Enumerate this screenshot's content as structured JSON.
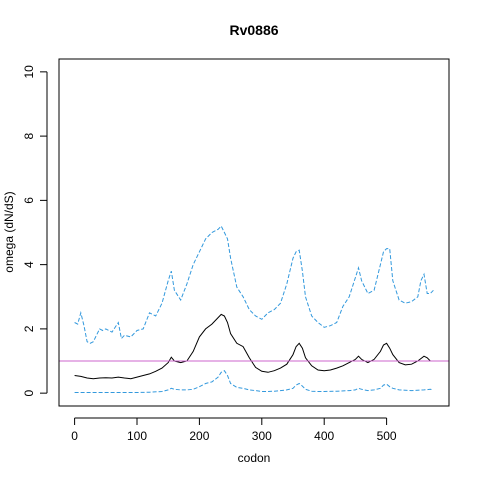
{
  "chart_data": {
    "type": "line",
    "title": "Rv0886",
    "xlabel": "codon",
    "ylabel": "omega (dN/dS)",
    "xlim": [
      -25,
      600
    ],
    "ylim": [
      -0.4,
      10.4
    ],
    "xticks": [
      0,
      100,
      200,
      300,
      400,
      500
    ],
    "yticks": [
      0,
      2,
      4,
      6,
      8,
      10
    ],
    "reference_line": {
      "y": 1,
      "color": "#CC66CC"
    },
    "grid": false,
    "series": [
      {
        "role": "estimate",
        "color": "#000000",
        "style": "solid",
        "x": [
          0,
          10,
          20,
          30,
          40,
          50,
          60,
          70,
          80,
          90,
          100,
          110,
          120,
          130,
          140,
          150,
          155,
          160,
          170,
          180,
          190,
          200,
          210,
          220,
          230,
          235,
          240,
          245,
          250,
          260,
          270,
          280,
          290,
          300,
          310,
          320,
          330,
          340,
          350,
          355,
          360,
          365,
          370,
          380,
          390,
          400,
          410,
          420,
          430,
          440,
          450,
          455,
          460,
          470,
          480,
          490,
          495,
          500,
          505,
          510,
          520,
          530,
          540,
          550,
          560,
          565,
          570,
          575
        ],
        "y": [
          0.55,
          0.52,
          0.47,
          0.45,
          0.47,
          0.48,
          0.47,
          0.5,
          0.47,
          0.45,
          0.5,
          0.55,
          0.6,
          0.68,
          0.78,
          0.95,
          1.12,
          1.0,
          0.95,
          1.0,
          1.3,
          1.75,
          2.0,
          2.15,
          2.35,
          2.45,
          2.4,
          2.2,
          1.85,
          1.55,
          1.45,
          1.1,
          0.8,
          0.68,
          0.65,
          0.7,
          0.78,
          0.9,
          1.2,
          1.45,
          1.55,
          1.4,
          1.1,
          0.85,
          0.72,
          0.7,
          0.72,
          0.78,
          0.85,
          0.95,
          1.05,
          1.15,
          1.05,
          0.95,
          1.05,
          1.3,
          1.5,
          1.55,
          1.4,
          1.2,
          0.95,
          0.88,
          0.9,
          1.0,
          1.15,
          1.1,
          1.0,
          1.0
        ]
      },
      {
        "role": "upper-interval",
        "color": "#3399DD",
        "style": "dashed",
        "x": [
          0,
          5,
          10,
          15,
          20,
          25,
          30,
          40,
          45,
          50,
          60,
          70,
          75,
          80,
          90,
          100,
          110,
          120,
          130,
          140,
          150,
          155,
          160,
          170,
          180,
          190,
          200,
          210,
          220,
          230,
          235,
          240,
          245,
          250,
          260,
          270,
          280,
          290,
          300,
          310,
          320,
          330,
          340,
          350,
          355,
          360,
          365,
          370,
          380,
          390,
          400,
          410,
          420,
          430,
          440,
          450,
          455,
          460,
          470,
          480,
          490,
          495,
          500,
          505,
          510,
          520,
          530,
          540,
          550,
          555,
          560,
          565,
          570,
          575
        ],
        "y": [
          2.2,
          2.15,
          2.5,
          2.1,
          1.6,
          1.55,
          1.6,
          2.0,
          1.95,
          2.0,
          1.9,
          2.2,
          1.7,
          1.8,
          1.75,
          1.95,
          2.0,
          2.5,
          2.4,
          2.8,
          3.5,
          3.8,
          3.2,
          2.9,
          3.4,
          4.0,
          4.4,
          4.8,
          5.0,
          5.1,
          5.2,
          5.0,
          4.8,
          4.2,
          3.3,
          3.0,
          2.6,
          2.4,
          2.3,
          2.5,
          2.6,
          2.8,
          3.4,
          4.2,
          4.4,
          4.45,
          3.8,
          3.0,
          2.4,
          2.2,
          2.05,
          2.1,
          2.2,
          2.7,
          3.0,
          3.6,
          3.9,
          3.5,
          3.1,
          3.2,
          4.0,
          4.4,
          4.5,
          4.5,
          3.5,
          2.9,
          2.8,
          2.85,
          3.0,
          3.5,
          3.7,
          3.1,
          3.1,
          3.2
        ]
      },
      {
        "role": "lower-interval",
        "color": "#3399DD",
        "style": "dashed",
        "x": [
          0,
          20,
          40,
          60,
          80,
          100,
          120,
          140,
          150,
          155,
          160,
          170,
          180,
          190,
          200,
          210,
          220,
          230,
          235,
          240,
          245,
          250,
          260,
          270,
          280,
          290,
          300,
          310,
          320,
          330,
          340,
          350,
          355,
          360,
          365,
          370,
          380,
          390,
          400,
          420,
          440,
          450,
          455,
          460,
          470,
          480,
          490,
          495,
          500,
          505,
          510,
          520,
          540,
          560,
          570,
          575
        ],
        "y": [
          0.02,
          0.02,
          0.02,
          0.02,
          0.02,
          0.02,
          0.03,
          0.05,
          0.1,
          0.15,
          0.12,
          0.1,
          0.1,
          0.12,
          0.2,
          0.3,
          0.35,
          0.5,
          0.65,
          0.7,
          0.55,
          0.3,
          0.18,
          0.15,
          0.1,
          0.08,
          0.05,
          0.05,
          0.06,
          0.08,
          0.1,
          0.15,
          0.25,
          0.3,
          0.22,
          0.12,
          0.06,
          0.05,
          0.05,
          0.06,
          0.08,
          0.1,
          0.15,
          0.12,
          0.08,
          0.1,
          0.15,
          0.25,
          0.28,
          0.2,
          0.15,
          0.1,
          0.08,
          0.1,
          0.12,
          0.1
        ]
      }
    ]
  }
}
